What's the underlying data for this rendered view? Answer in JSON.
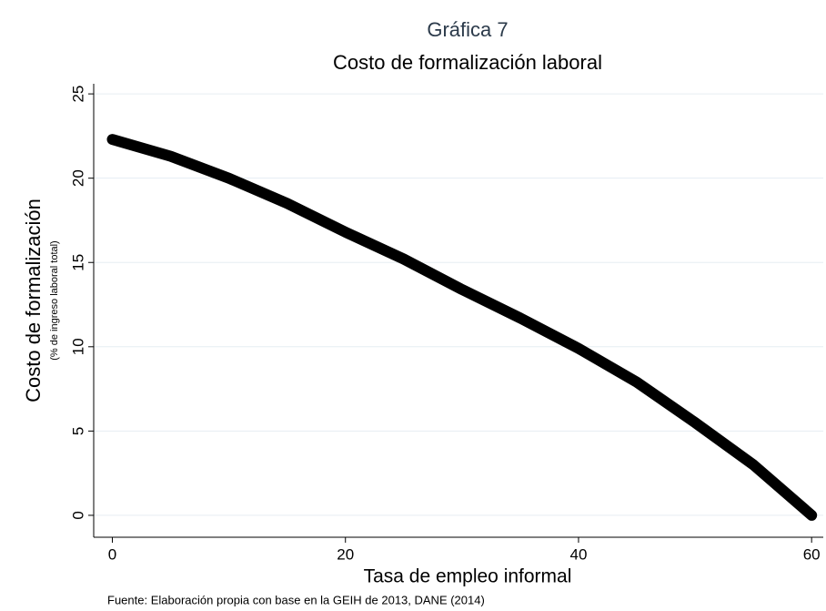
{
  "chart_data": {
    "type": "line",
    "title": "Gráfica 7",
    "subtitle": "Costo de formalización laboral",
    "x_label": "Tasa de empleo informal",
    "y_label": "Costo de formalización",
    "y_sublabel": "(% de ingreso laboral total)",
    "note": "Fuente: Elaboración propia con base en la GEIH de 2013, DANE (2014)",
    "x": [
      0,
      5,
      10,
      15,
      20,
      25,
      30,
      35,
      40,
      45,
      50,
      55,
      60
    ],
    "values": [
      22.3,
      21.3,
      20.0,
      18.5,
      16.8,
      15.2,
      13.4,
      11.7,
      9.9,
      7.9,
      5.5,
      3.0,
      0
    ],
    "color": "#000000",
    "xlim": [
      -1.6,
      61
    ],
    "ylim": [
      -1.3,
      25.6
    ],
    "xticks": [
      0,
      20,
      40,
      60
    ],
    "yticks": [
      0,
      5,
      10,
      15,
      20,
      25
    ],
    "grid": true
  }
}
